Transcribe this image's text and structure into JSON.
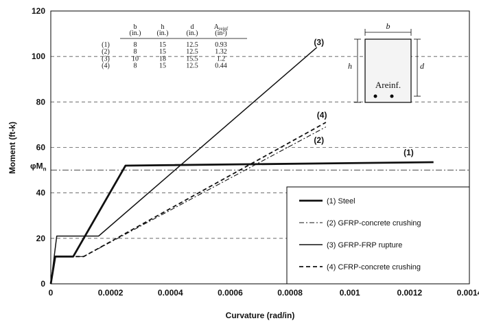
{
  "chart_data": {
    "type": "line",
    "xlabel": "Curvature (rad/in)",
    "ylabel": "Moment (ft-k)",
    "xlim": [
      0,
      0.0014
    ],
    "ylim": [
      0,
      120
    ],
    "x_ticks": [
      0,
      0.0002,
      0.0004,
      0.0006,
      0.0008,
      0.001,
      0.0012,
      0.0014
    ],
    "x_tick_labels": [
      "0",
      "0.0002",
      "0.0004",
      "0.0006",
      "0.0008",
      "0.001",
      "0.0012",
      "0.0014"
    ],
    "y_ticks": [
      0,
      20,
      40,
      60,
      80,
      100,
      120
    ],
    "y_tick_labels": [
      "0",
      "20",
      "40",
      "60",
      "80",
      "100",
      "120"
    ],
    "grid": "horizontal dashed",
    "reference_line": {
      "label": "φMn",
      "y": 50
    },
    "series": [
      {
        "name": "(1) Steel",
        "tag": "(1)",
        "style": "thick-solid",
        "x": [
          0,
          1.5e-05,
          7.5e-05,
          0.00025,
          0.00128
        ],
        "y": [
          0,
          12,
          12,
          52,
          53.5
        ]
      },
      {
        "name": "(2) GFRP-concrete crushing",
        "tag": "(2)",
        "style": "dash-dot",
        "x": [
          0,
          1.5e-05,
          0.00011,
          0.00092
        ],
        "y": [
          0,
          12,
          12,
          69
        ]
      },
      {
        "name": "(3) GFRP-FRP rupture",
        "tag": "(3)",
        "style": "solid",
        "x": [
          0,
          2e-05,
          0.00016,
          0.00089
        ],
        "y": [
          0,
          21,
          21,
          104
        ]
      },
      {
        "name": "(4) CFRP-concrete crushing",
        "tag": "(4)",
        "style": "dashed",
        "x": [
          0,
          1.5e-05,
          0.00011,
          0.00092
        ],
        "y": [
          0,
          12,
          12,
          71
        ]
      }
    ],
    "table": {
      "headers": [
        "",
        "b",
        "h",
        "d",
        "A"
      ],
      "header_sub": "reinf",
      "units": [
        "",
        "(in.)",
        "(in.)",
        "(in.)",
        "(in²)"
      ],
      "rows": [
        [
          "(1)",
          "8",
          "15",
          "12.5",
          "0.93"
        ],
        [
          "(2)",
          "8",
          "15",
          "12.5",
          "1.32"
        ],
        [
          "(3)",
          "10",
          "18",
          "15.5",
          "1.2"
        ],
        [
          "(4)",
          "8",
          "15",
          "12.5",
          "0.44"
        ]
      ]
    },
    "section_sketch": {
      "b": "b",
      "h": "h",
      "d": "d",
      "label": "Areinf."
    }
  }
}
